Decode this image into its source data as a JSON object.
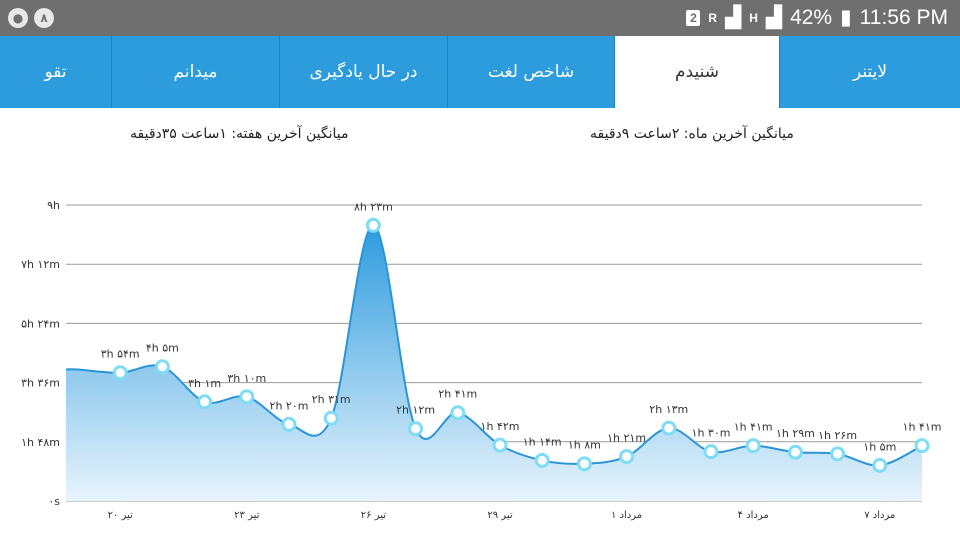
{
  "status_bar": {
    "left_badge": "۸",
    "sim_badge": "2",
    "signal_small": "R",
    "data_small": "H",
    "battery_percent": "42%",
    "time": "11:56 PM"
  },
  "tabs": [
    {
      "label": "لایتنر",
      "active": false
    },
    {
      "label": "شنیدم",
      "active": true
    },
    {
      "label": "شاخص لغت",
      "active": false
    },
    {
      "label": "در حال یادگیری",
      "active": false
    },
    {
      "label": "میدانم",
      "active": false
    },
    {
      "label": "تقو",
      "active": false
    }
  ],
  "averages": {
    "month": "میانگین آخرین ماه: ۲ساعت  ۹دقیقه",
    "week": "میانگین آخرین هفته: ۱ساعت  ۳۵دقیقه"
  },
  "chart_data": {
    "type": "area",
    "y_unit": "minutes",
    "ylim": [
      0,
      540
    ],
    "y_ticks": [
      {
        "value": 0,
        "label": "۰s"
      },
      {
        "value": 108,
        "label": "۱h ۴۸m"
      },
      {
        "value": 216,
        "label": "۳h ۳۶m"
      },
      {
        "value": 324,
        "label": "۵h ۲۴m"
      },
      {
        "value": 432,
        "label": "۷h ۱۲m"
      },
      {
        "value": 540,
        "label": "۹h"
      }
    ],
    "x_ticks": [
      {
        "index": 1,
        "label": "۲۰ تیر"
      },
      {
        "index": 4,
        "label": "۲۳ تیر"
      },
      {
        "index": 7,
        "label": "۲۶ تیر"
      },
      {
        "index": 10,
        "label": "۲۹ تیر"
      },
      {
        "index": 13,
        "label": "۱ مرداد"
      },
      {
        "index": 16,
        "label": "۴ مرداد"
      },
      {
        "index": 19,
        "label": "۷ مرداد"
      }
    ],
    "series": [
      {
        "values": [
          240,
          234,
          245,
          181,
          190,
          140,
          151,
          503,
          132,
          161,
          102,
          74,
          68,
          81,
          133,
          90,
          101,
          89,
          86,
          65,
          101
        ],
        "labels": [
          "",
          "۳h ۵۴m",
          "۴h ۵m",
          "۳h ۱m",
          "۳h ۱۰m",
          "۲h ۲۰m",
          "۲h ۳۱m",
          "۸h ۲۳m",
          "۲h ۱۲m",
          "۲h ۴۱m",
          "۱h ۴۲m",
          "۱h ۱۴m",
          "۱h ۸m",
          "۱h ۲۱m",
          "۲h ۱۳m",
          "۱h ۳۰m",
          "۱h ۴۱m",
          "۱h ۲۹m",
          "۱h ۲۶m",
          "۱h ۵m",
          "۱h ۴۱m"
        ]
      }
    ],
    "grid": true,
    "colors": {
      "line": "#2a95d6",
      "fill_top": "#2d9bde",
      "fill_bottom": "#e8f4fc",
      "marker": "#7fdcf5"
    }
  }
}
